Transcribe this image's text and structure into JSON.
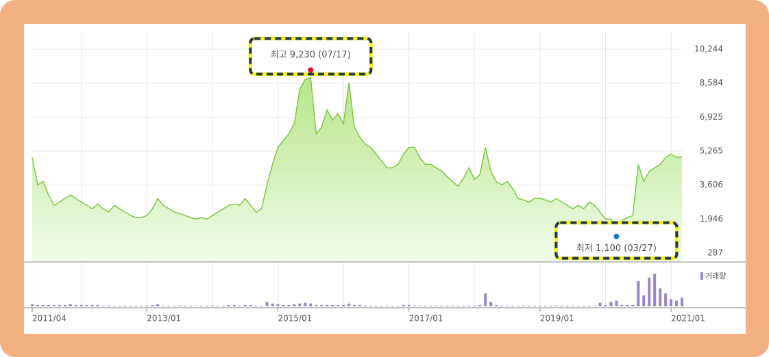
{
  "chart_data": {
    "type": "line",
    "x": [
      "2011/04",
      "2011/05",
      "2011/06",
      "2011/07",
      "2011/08",
      "2011/09",
      "2011/10",
      "2011/11",
      "2011/12",
      "2012/01",
      "2012/02",
      "2012/03",
      "2012/04",
      "2012/05",
      "2012/06",
      "2012/07",
      "2012/08",
      "2012/09",
      "2012/10",
      "2012/11",
      "2012/12",
      "2013/01",
      "2013/02",
      "2013/03",
      "2013/04",
      "2013/05",
      "2013/06",
      "2013/07",
      "2013/08",
      "2013/09",
      "2013/10",
      "2013/11",
      "2013/12",
      "2014/01",
      "2014/02",
      "2014/03",
      "2014/04",
      "2014/05",
      "2014/06",
      "2014/07",
      "2014/08",
      "2014/09",
      "2014/10",
      "2014/11",
      "2014/12",
      "2015/01",
      "2015/02",
      "2015/03",
      "2015/04",
      "2015/05",
      "2015/06",
      "2015/07",
      "2015/08",
      "2015/09",
      "2015/10",
      "2015/11",
      "2015/12",
      "2016/01",
      "2016/02",
      "2016/03",
      "2016/04",
      "2016/05",
      "2016/06",
      "2016/07",
      "2016/08",
      "2016/09",
      "2016/10",
      "2016/11",
      "2016/12",
      "2017/01",
      "2017/02",
      "2017/03",
      "2017/04",
      "2017/05",
      "2017/06",
      "2017/07",
      "2017/08",
      "2017/09",
      "2017/10",
      "2017/11",
      "2017/12",
      "2018/01",
      "2018/02",
      "2018/03",
      "2018/04",
      "2018/05",
      "2018/06",
      "2018/07",
      "2018/08",
      "2018/09",
      "2018/10",
      "2018/11",
      "2018/12",
      "2019/01",
      "2019/02",
      "2019/03",
      "2019/04",
      "2019/05",
      "2019/06",
      "2019/07",
      "2019/08",
      "2019/09",
      "2019/10",
      "2019/11",
      "2019/12",
      "2020/01",
      "2020/02",
      "2020/03",
      "2020/04",
      "2020/05",
      "2020/06",
      "2020/07",
      "2020/08",
      "2020/09",
      "2020/10",
      "2020/11",
      "2020/12",
      "2021/01",
      "2021/02",
      "2021/03"
    ],
    "series": [
      {
        "color": "#7cc843",
        "values": [
          4950,
          3620,
          3780,
          3120,
          2620,
          2780,
          2950,
          3120,
          2950,
          2780,
          2620,
          2450,
          2680,
          2450,
          2290,
          2620,
          2450,
          2290,
          2120,
          2020,
          2020,
          2120,
          2450,
          2950,
          2620,
          2450,
          2290,
          2220,
          2120,
          2020,
          1950,
          2020,
          1950,
          2120,
          2290,
          2450,
          2620,
          2680,
          2620,
          2950,
          2620,
          2290,
          2450,
          3620,
          4620,
          5450,
          5780,
          6110,
          6610,
          8280,
          8780,
          8850,
          6110,
          6440,
          7280,
          6780,
          7110,
          6610,
          8610,
          6440,
          5950,
          5610,
          5450,
          5120,
          4780,
          4450,
          4450,
          4620,
          5120,
          5450,
          5450,
          4950,
          4620,
          4620,
          4450,
          4280,
          4020,
          3780,
          3550,
          3950,
          4450,
          3880,
          4120,
          5450,
          4280,
          3780,
          3620,
          3780,
          3450,
          2950,
          2880,
          2780,
          2950,
          2950,
          2880,
          2780,
          2950,
          2780,
          2620,
          2450,
          2620,
          2450,
          2780,
          2620,
          2290,
          1950,
          1950,
          1300,
          1880,
          2020,
          2120,
          4620,
          3780,
          4280,
          4450,
          4620,
          4950,
          5120,
          4950,
          5000
        ]
      },
      {
        "name": "거래량",
        "type": "bar",
        "axis": "y2",
        "color": "#9a86c9",
        "values": [
          3,
          2,
          2,
          2,
          2,
          2,
          2,
          3,
          2,
          2,
          2,
          2,
          2,
          1,
          1,
          1,
          1,
          1,
          1,
          1,
          1,
          1,
          2,
          3,
          1,
          1,
          1,
          1,
          1,
          1,
          1,
          1,
          1,
          1,
          1,
          1,
          2,
          2,
          1,
          2,
          2,
          1,
          1,
          6,
          4,
          3,
          2,
          2,
          3,
          4,
          5,
          4,
          2,
          2,
          2,
          2,
          2,
          2,
          4,
          2,
          2,
          1,
          1,
          1,
          1,
          1,
          1,
          1,
          2,
          2,
          1,
          1,
          1,
          1,
          1,
          1,
          1,
          1,
          1,
          1,
          1,
          1,
          2,
          18,
          6,
          2,
          1,
          1,
          1,
          1,
          1,
          1,
          1,
          1,
          1,
          1,
          1,
          1,
          1,
          1,
          1,
          1,
          1,
          1,
          5,
          2,
          6,
          8,
          2,
          2,
          2,
          35,
          15,
          40,
          45,
          25,
          18,
          10,
          8,
          12
        ]
      }
    ],
    "ylim": [
      287,
      10244
    ],
    "yticks": [
      {
        "value": 10244,
        "label": "10,244"
      },
      {
        "value": 8584,
        "label": "8,584"
      },
      {
        "value": 6925,
        "label": "6,925"
      },
      {
        "value": 5265,
        "label": "5,265"
      },
      {
        "value": 3606,
        "label": "3,606"
      },
      {
        "value": 1946,
        "label": "1,946"
      },
      287
    ],
    "y2lim": [
      0,
      50
    ],
    "xticks": [
      "2011/04",
      "2013/01",
      "2015/01",
      "2017/01",
      "2019/01",
      "2021/01"
    ],
    "grid": true,
    "annotations": [
      {
        "text": "최고 9,230 (07/17)",
        "value": 9230,
        "x": "2015/07",
        "color": "#e8141e"
      },
      {
        "text": "최저 1,100 (03/27)",
        "value": 1100,
        "x": "2020/03",
        "color": "#1a73d0"
      }
    ]
  }
}
